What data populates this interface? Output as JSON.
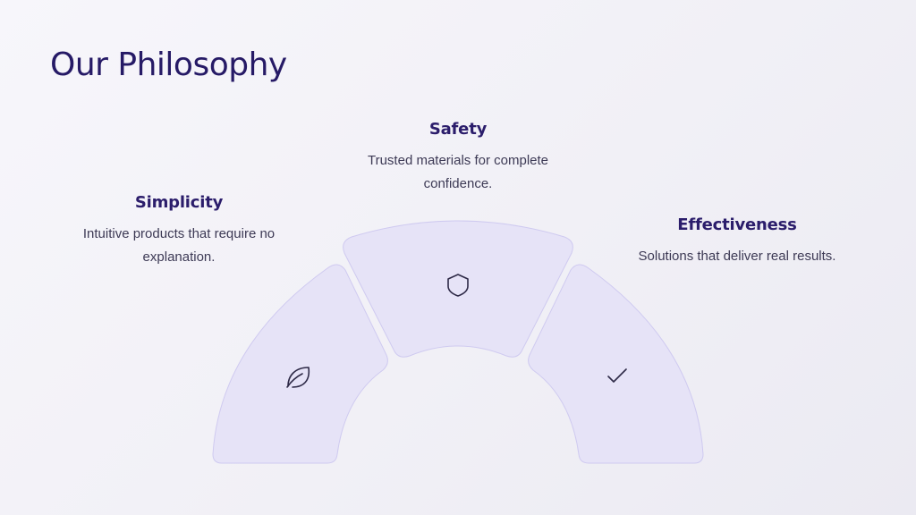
{
  "page": {
    "title": "Our Philosophy"
  },
  "items": [
    {
      "title": "Simplicity",
      "description": "Intuitive products that require no explanation.",
      "icon": "leaf-icon"
    },
    {
      "title": "Safety",
      "description": "Trusted materials for complete confidence.",
      "icon": "shield-icon"
    },
    {
      "title": "Effectiveness",
      "description": "Solutions that deliver real results.",
      "icon": "check-icon"
    }
  ],
  "colors": {
    "title": "#261a66",
    "heading": "#2b1d6b",
    "body_text": "#3d3a55",
    "segment_fill": "#e6e3f7",
    "segment_stroke": "#cfcaf0"
  }
}
